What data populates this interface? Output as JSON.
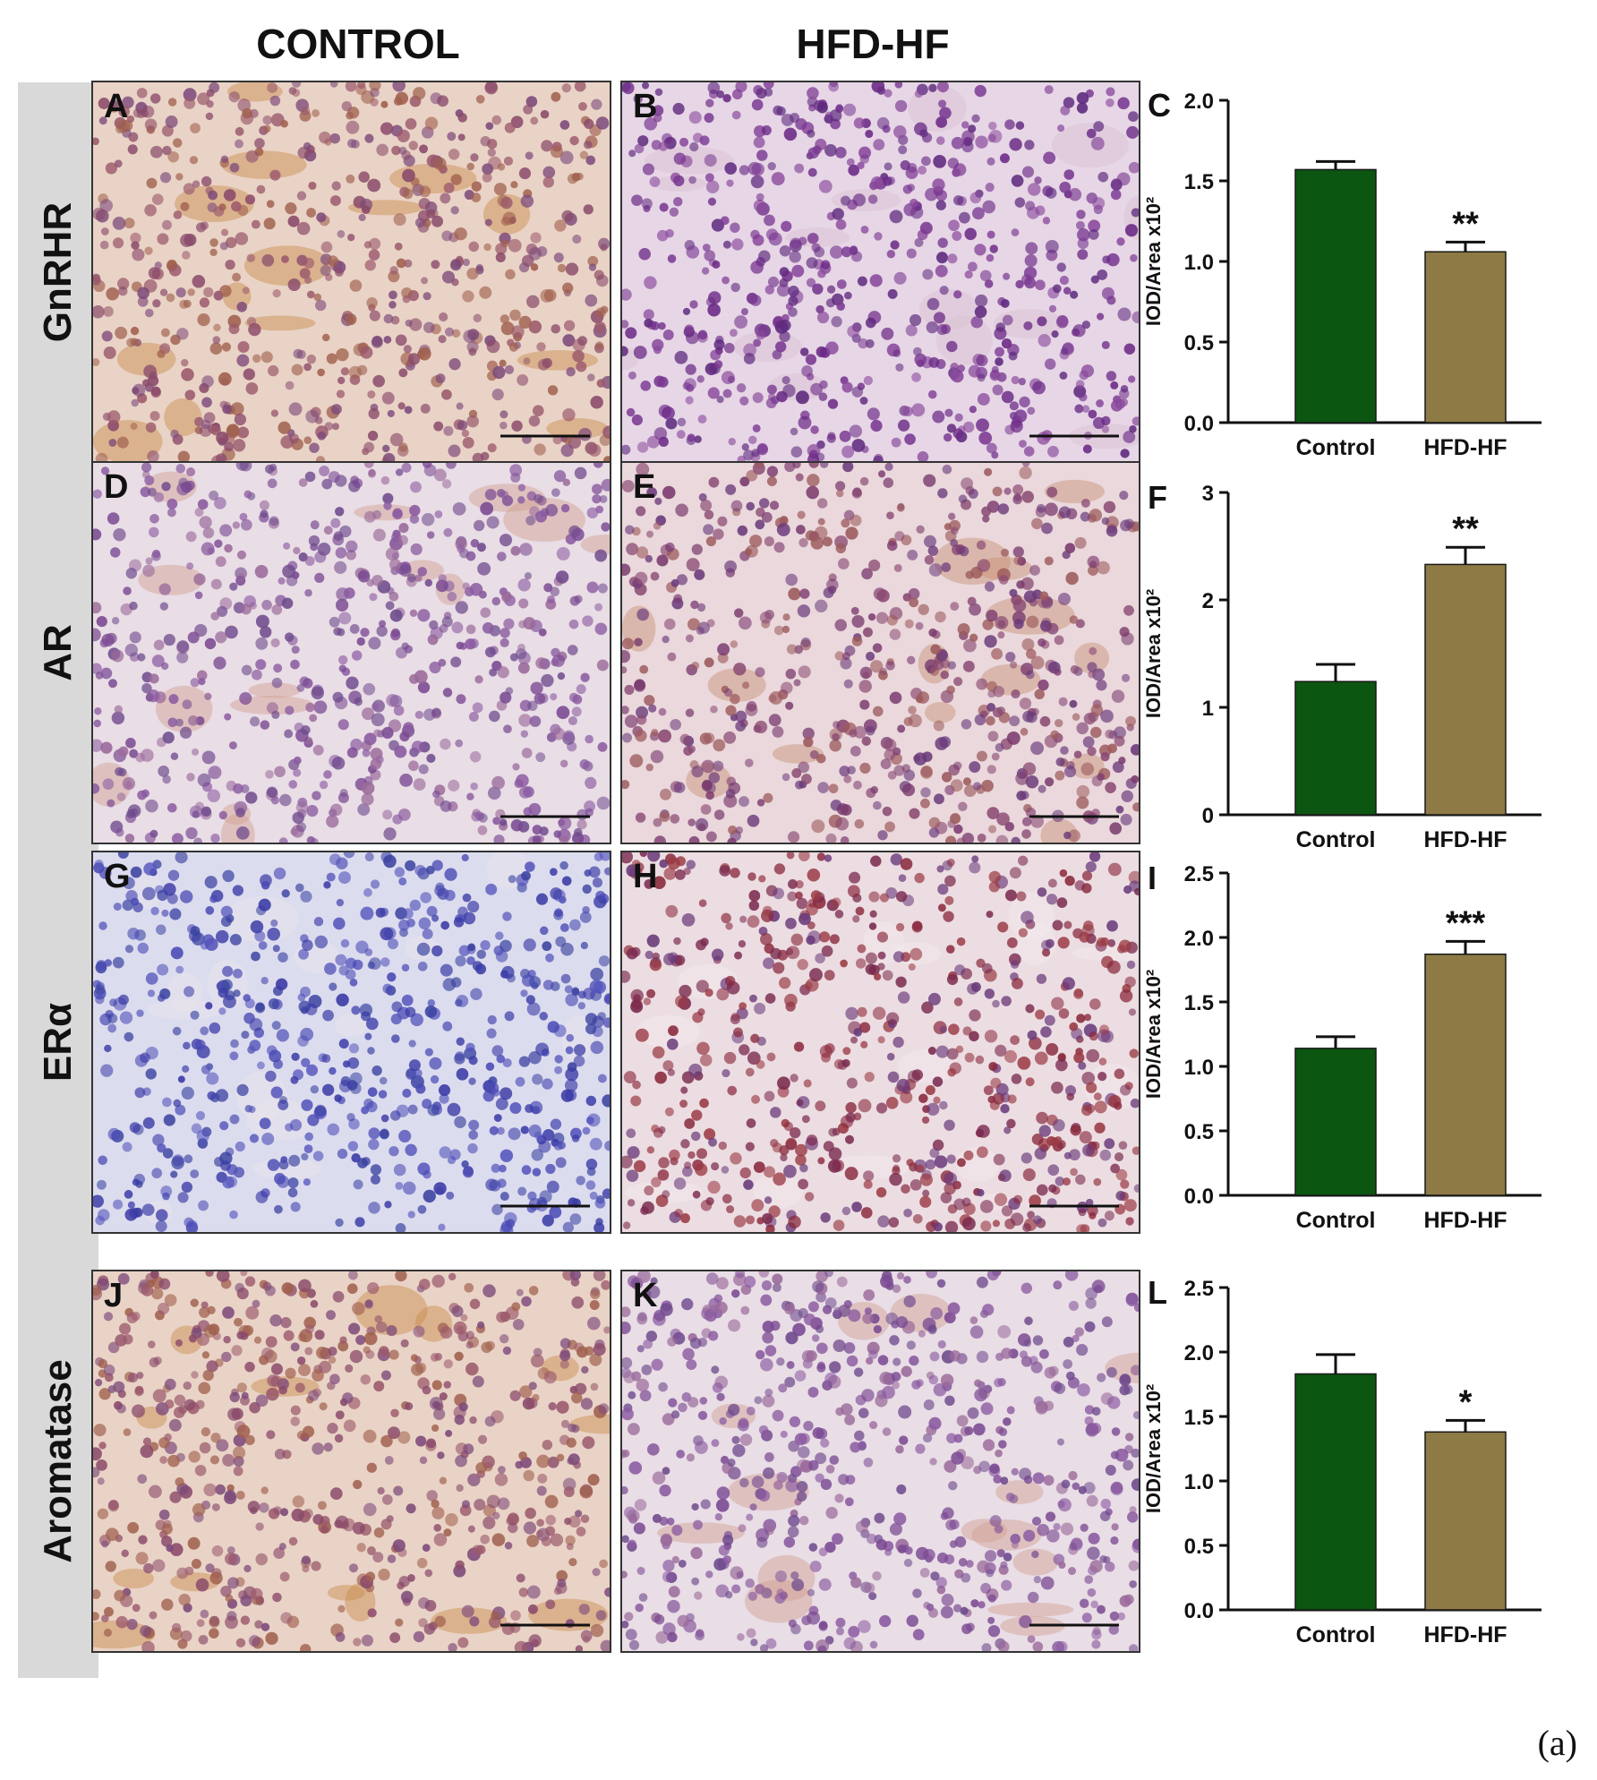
{
  "column_headers": [
    "CONTROL",
    "HFD-HF"
  ],
  "rows": [
    {
      "label": "GnRHR",
      "panels": [
        {
          "letter": "A",
          "tint": "#c0826f",
          "stain": "brown"
        },
        {
          "letter": "B",
          "tint": "#c8a0c0",
          "stain": "purple"
        }
      ]
    },
    {
      "label": "AR",
      "panels": [
        {
          "letter": "D",
          "tint": "#c8a2b8",
          "stain": "light"
        },
        {
          "letter": "E",
          "tint": "#c09aa8",
          "stain": "brown-light"
        }
      ]
    },
    {
      "label": "ERα",
      "panels": [
        {
          "letter": "G",
          "tint": "#b8b8d8",
          "stain": "blue"
        },
        {
          "letter": "H",
          "tint": "#c69aa8",
          "stain": "red"
        }
      ]
    },
    {
      "label": "Aromatase",
      "panels": [
        {
          "letter": "J",
          "tint": "#cda07f",
          "stain": "brown"
        },
        {
          "letter": "K",
          "tint": "#c9b0b8",
          "stain": "light"
        }
      ]
    }
  ],
  "chart_data": [
    {
      "panel": "C",
      "type": "bar",
      "categories": [
        "Control",
        "HFD-HF"
      ],
      "values": [
        1.57,
        1.06
      ],
      "errors": [
        0.05,
        0.06
      ],
      "ylabel": "IOD/Area x10²",
      "ylim": [
        0,
        2.0
      ],
      "yticks": [
        "0.0",
        "0.5",
        "1.0",
        "1.5",
        "2.0"
      ],
      "annotations": [
        "",
        "**"
      ]
    },
    {
      "panel": "F",
      "type": "bar",
      "categories": [
        "Control",
        "HFD-HF"
      ],
      "values": [
        1.24,
        2.33
      ],
      "errors": [
        0.16,
        0.16
      ],
      "ylabel": "IOD/Area x10²",
      "ylim": [
        0,
        3
      ],
      "yticks": [
        "0",
        "1",
        "2",
        "3"
      ],
      "annotations": [
        "",
        "**"
      ]
    },
    {
      "panel": "I",
      "type": "bar",
      "categories": [
        "Control",
        "HFD-HF"
      ],
      "values": [
        1.14,
        1.87
      ],
      "errors": [
        0.09,
        0.1
      ],
      "ylabel": "IOD/Area x10²",
      "ylim": [
        0,
        2.5
      ],
      "yticks": [
        "0.0",
        "0.5",
        "1.0",
        "1.5",
        "2.0",
        "2.5"
      ],
      "annotations": [
        "",
        "***"
      ]
    },
    {
      "panel": "L",
      "type": "bar",
      "categories": [
        "Control",
        "HFD-HF"
      ],
      "values": [
        1.83,
        1.38
      ],
      "errors": [
        0.15,
        0.09
      ],
      "ylabel": "IOD/Area x10²",
      "ylim": [
        0,
        2.5
      ],
      "yticks": [
        "0.0",
        "0.5",
        "1.0",
        "1.5",
        "2.0",
        "2.5"
      ],
      "annotations": [
        "",
        "*"
      ]
    }
  ],
  "colors": {
    "control_bar": "#0b5611",
    "hfd_bar": "#8d7a45",
    "axis": "#111111"
  },
  "figure_label": "(a)"
}
